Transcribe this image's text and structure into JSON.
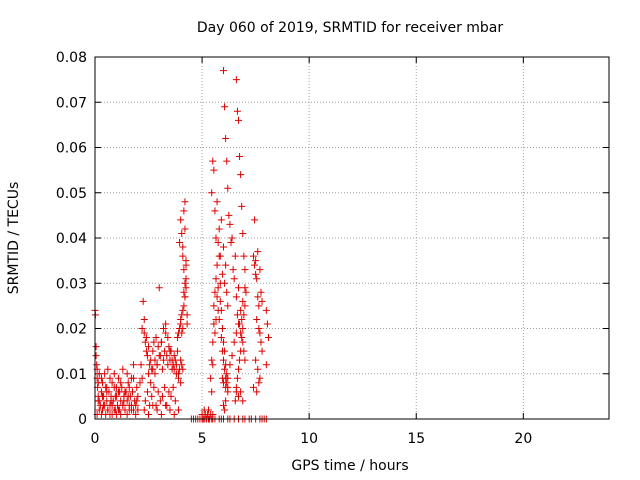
{
  "chart_data": {
    "type": "scatter",
    "title": "Day 060 of 2019, SRMTID for receiver mbar",
    "xlabel": "GPS time / hours",
    "ylabel": "SRMTID / TECUs",
    "xlim": [
      0,
      24
    ],
    "ylim": [
      0,
      0.08
    ],
    "xticks": [
      0,
      5,
      10,
      15,
      20
    ],
    "xtick_labels": [
      "0",
      "5",
      "10",
      "15",
      "20"
    ],
    "yticks": [
      0,
      0.01,
      0.02,
      0.03,
      0.04,
      0.05,
      0.06,
      0.07,
      0.08
    ],
    "ytick_labels": [
      "0",
      "0.01",
      "0.02",
      "0.03",
      "0.04",
      "0.05",
      "0.06",
      "0.07",
      "0.08"
    ],
    "grid": true,
    "marker": "+",
    "color": "#dd0000",
    "series": [
      {
        "name": "SRMTID",
        "x": [
          0.0,
          0.02,
          0.05,
          0.08,
          0.1,
          0.12,
          0.15,
          0.2,
          0.25,
          0.3,
          0.35,
          0.4,
          0.45,
          0.5,
          0.55,
          0.6,
          0.65,
          0.7,
          0.75,
          0.8,
          0.85,
          0.9,
          0.95,
          1.0,
          1.05,
          1.1,
          1.15,
          1.2,
          1.25,
          1.3,
          1.35,
          1.4,
          1.45,
          1.5,
          1.55,
          1.6,
          1.65,
          1.7,
          1.75,
          1.8,
          1.85,
          1.9,
          1.95,
          2.0,
          0.05,
          0.1,
          0.15,
          0.2,
          0.3,
          0.35,
          0.45,
          0.55,
          0.6,
          0.7,
          0.8,
          0.9,
          1.0,
          1.1,
          1.2,
          1.3,
          1.4,
          1.5,
          1.6,
          1.7,
          1.8,
          0.1,
          0.2,
          0.3,
          0.4,
          0.5,
          0.6,
          0.7,
          0.8,
          0.9,
          1.0,
          1.1,
          1.2,
          1.3,
          1.4,
          1.5,
          1.6,
          1.7,
          1.8,
          1.9,
          2.0,
          0.15,
          0.35,
          0.55,
          0.75,
          0.95,
          1.15,
          1.35,
          1.55,
          1.75,
          1.95,
          2.1,
          2.15,
          2.2,
          2.25,
          2.3,
          2.35,
          2.4,
          2.45,
          2.5,
          2.55,
          2.6,
          2.65,
          2.7,
          2.75,
          2.8,
          2.85,
          2.9,
          2.95,
          3.0,
          3.05,
          3.1,
          3.15,
          3.2,
          3.25,
          3.3,
          3.35,
          3.4,
          3.45,
          3.5,
          3.55,
          3.6,
          3.65,
          3.7,
          3.75,
          3.8,
          3.85,
          3.9,
          3.95,
          4.0,
          4.05,
          4.1,
          2.2,
          2.3,
          2.4,
          2.5,
          2.6,
          2.7,
          2.8,
          2.9,
          3.0,
          3.1,
          3.2,
          3.3,
          3.4,
          3.5,
          3.6,
          3.7,
          3.8,
          3.9,
          4.0,
          2.35,
          2.45,
          2.55,
          2.65,
          2.75,
          2.85,
          2.95,
          3.05,
          3.15,
          3.25,
          3.35,
          3.45,
          3.55,
          3.65,
          3.75,
          2.3,
          2.5,
          2.7,
          2.9,
          3.1,
          3.3,
          3.5,
          3.7,
          3.9,
          3.85,
          3.9,
          3.95,
          4.0,
          4.0,
          4.05,
          4.05,
          4.1,
          4.1,
          4.15,
          4.15,
          4.2,
          4.2,
          4.25,
          4.25,
          4.1,
          4.05,
          4.0,
          3.95,
          4.15,
          4.2,
          4.2,
          4.25,
          4.15,
          4.1,
          4.2,
          4.25,
          4.3,
          4.3,
          4.5,
          4.6,
          4.7,
          4.8,
          4.9,
          5.0,
          5.1,
          5.2,
          5.3,
          5.5,
          5.6,
          5.8,
          5.9,
          6.0,
          6.2,
          6.3,
          6.5,
          6.7,
          6.9,
          7.0,
          7.2,
          7.3,
          7.5,
          7.7,
          7.8,
          7.9,
          8.0,
          5.0,
          5.05,
          5.1,
          5.15,
          5.2,
          5.25,
          5.3,
          5.35,
          5.4,
          5.45,
          5.5,
          5.4,
          5.45,
          5.45,
          5.5,
          5.5,
          5.55,
          5.55,
          5.6,
          5.6,
          5.65,
          5.65,
          5.7,
          5.7,
          5.75,
          5.75,
          5.8,
          5.8,
          5.85,
          5.85,
          5.9,
          5.9,
          5.95,
          5.95,
          6.0,
          6.0,
          6.05,
          6.05,
          6.1,
          6.1,
          6.15,
          6.15,
          6.2,
          6.2,
          5.45,
          5.5,
          5.55,
          5.6,
          5.65,
          5.7,
          5.75,
          5.8,
          5.85,
          5.9,
          5.95,
          6.0,
          6.05,
          6.1,
          6.15,
          6.2,
          6.0,
          6.05,
          6.1,
          6.15,
          6.2,
          6.25,
          6.3,
          6.35,
          6.4,
          6.45,
          6.5,
          6.55,
          6.6,
          6.65,
          6.7,
          6.75,
          6.8,
          6.85,
          6.9,
          6.95,
          7.0,
          6.6,
          6.65,
          6.7,
          6.75,
          6.8,
          6.85,
          6.9,
          6.95,
          7.0,
          7.0,
          6.9,
          6.8,
          6.7,
          6.6,
          6.5,
          6.4,
          6.3,
          6.2,
          6.1,
          6.55,
          6.6,
          6.65,
          6.7,
          6.75,
          6.8,
          6.85,
          6.9,
          6.95,
          7.0,
          7.05,
          7.4,
          7.45,
          7.5,
          7.55,
          7.6,
          7.65,
          7.7,
          7.75,
          7.8,
          7.5,
          7.6,
          7.7,
          7.4,
          7.55,
          7.65,
          7.45,
          7.5,
          7.6,
          7.7,
          7.75,
          7.8,
          7.55,
          7.65,
          8.0,
          8.05,
          8.1,
          8.0,
          5.95,
          6.0,
          6.6,
          6.7,
          6.9,
          6.8,
          6.0,
          6.05,
          6.1
        ],
        "y": [
          0.024,
          0.023,
          0.016,
          0.012,
          0.009,
          0.007,
          0.005,
          0.004,
          0.003,
          0.006,
          0.002,
          0.005,
          0.003,
          0.007,
          0.004,
          0.002,
          0.006,
          0.003,
          0.005,
          0.001,
          0.004,
          0.007,
          0.002,
          0.005,
          0.003,
          0.006,
          0.002,
          0.004,
          0.007,
          0.003,
          0.005,
          0.002,
          0.006,
          0.004,
          0.008,
          0.003,
          0.005,
          0.002,
          0.006,
          0.009,
          0.004,
          0.003,
          0.007,
          0.005,
          0.014,
          0.011,
          0.008,
          0.01,
          0.009,
          0.008,
          0.01,
          0.007,
          0.011,
          0.009,
          0.008,
          0.01,
          0.007,
          0.009,
          0.008,
          0.011,
          0.006,
          0.01,
          0.007,
          0.009,
          0.012,
          0.001,
          0.002,
          0.001,
          0.003,
          0.001,
          0.002,
          0.001,
          0.003,
          0.002,
          0.001,
          0.002,
          0.001,
          0.003,
          0.002,
          0.001,
          0.002,
          0.003,
          0.002,
          0.001,
          0.002,
          0.004,
          0.005,
          0.006,
          0.004,
          0.005,
          0.006,
          0.004,
          0.005,
          0.006,
          0.004,
          0.008,
          0.012,
          0.009,
          0.026,
          0.022,
          0.017,
          0.015,
          0.014,
          0.01,
          0.012,
          0.008,
          0.011,
          0.015,
          0.017,
          0.013,
          0.018,
          0.012,
          0.016,
          0.029,
          0.014,
          0.017,
          0.011,
          0.013,
          0.015,
          0.019,
          0.014,
          0.012,
          0.016,
          0.013,
          0.015,
          0.011,
          0.012,
          0.014,
          0.013,
          0.012,
          0.015,
          0.01,
          0.011,
          0.013,
          0.012,
          0.011,
          0.02,
          0.019,
          0.018,
          0.016,
          0.013,
          0.011,
          0.01,
          0.012,
          0.014,
          0.017,
          0.02,
          0.021,
          0.018,
          0.015,
          0.013,
          0.011,
          0.01,
          0.009,
          0.008,
          0.004,
          0.006,
          0.003,
          0.005,
          0.007,
          0.003,
          0.006,
          0.004,
          0.005,
          0.007,
          0.003,
          0.006,
          0.005,
          0.007,
          0.004,
          0.002,
          0.001,
          0.003,
          0.002,
          0.001,
          0.003,
          0.002,
          0.001,
          0.002,
          0.018,
          0.019,
          0.02,
          0.022,
          0.021,
          0.023,
          0.019,
          0.024,
          0.02,
          0.028,
          0.025,
          0.03,
          0.027,
          0.034,
          0.031,
          0.038,
          0.041,
          0.044,
          0.039,
          0.046,
          0.048,
          0.042,
          0.035,
          0.033,
          0.036,
          0.027,
          0.029,
          0.023,
          0.021,
          0.0,
          0.0,
          0.0,
          0.0,
          0.0,
          0.0,
          0.0,
          0.0,
          0.0,
          0.0,
          0.0,
          0.0,
          0.0,
          0.0,
          0.0,
          0.0,
          0.0,
          0.0,
          0.0,
          0.0,
          0.0,
          0.0,
          0.0,
          0.0,
          0.0,
          0.0,
          0.0,
          0.001,
          0.0,
          0.002,
          0.001,
          0.0,
          0.001,
          0.002,
          0.0,
          0.001,
          0.0,
          0.001,
          0.009,
          0.006,
          0.013,
          0.012,
          0.017,
          0.021,
          0.025,
          0.019,
          0.028,
          0.022,
          0.031,
          0.027,
          0.034,
          0.024,
          0.029,
          0.036,
          0.022,
          0.03,
          0.026,
          0.018,
          0.024,
          0.015,
          0.02,
          0.013,
          0.017,
          0.011,
          0.015,
          0.009,
          0.012,
          0.008,
          0.01,
          0.006,
          0.007,
          0.05,
          0.057,
          0.055,
          0.046,
          0.04,
          0.048,
          0.039,
          0.042,
          0.036,
          0.044,
          0.032,
          0.038,
          0.03,
          0.034,
          0.028,
          0.025,
          0.077,
          0.069,
          0.062,
          0.057,
          0.051,
          0.045,
          0.043,
          0.039,
          0.04,
          0.033,
          0.031,
          0.036,
          0.027,
          0.023,
          0.029,
          0.021,
          0.019,
          0.022,
          0.017,
          0.015,
          0.013,
          0.075,
          0.068,
          0.066,
          0.058,
          0.054,
          0.047,
          0.041,
          0.036,
          0.033,
          0.029,
          0.026,
          0.024,
          0.021,
          0.019,
          0.017,
          0.014,
          0.012,
          0.009,
          0.007,
          0.004,
          0.006,
          0.009,
          0.011,
          0.013,
          0.015,
          0.018,
          0.02,
          0.023,
          0.025,
          0.028,
          0.036,
          0.034,
          0.032,
          0.031,
          0.027,
          0.025,
          0.019,
          0.017,
          0.015,
          0.013,
          0.011,
          0.009,
          0.007,
          0.006,
          0.008,
          0.044,
          0.035,
          0.037,
          0.033,
          0.028,
          0.026,
          0.022,
          0.02,
          0.024,
          0.021,
          0.018,
          0.012,
          0.009,
          0.008,
          0.007,
          0.005,
          0.004,
          0.006,
          0.003,
          0.002,
          0.004
        ]
      }
    ]
  }
}
